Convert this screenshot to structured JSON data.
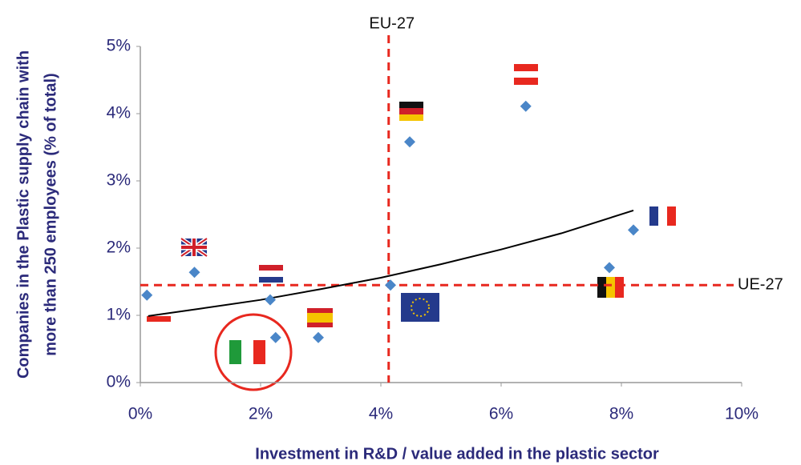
{
  "chart_data": {
    "type": "scatter",
    "x_label": "Investment in R&D / value added in the plastic sector",
    "y_label": [
      "Companies in the Plastic supply chain with",
      "more than 250 employees (% of total)"
    ],
    "x": [
      0.11,
      0.9,
      2.16,
      2.25,
      2.96,
      4.16,
      4.48,
      6.41,
      7.8,
      8.2
    ],
    "values": [
      1.3,
      1.64,
      1.23,
      0.67,
      0.67,
      1.45,
      3.58,
      4.11,
      1.71,
      2.27
    ],
    "color": "#4a86c8",
    "trend": {
      "x": [
        0.13,
        1,
        2,
        3,
        4,
        5,
        6,
        7,
        8.2
      ],
      "y": [
        0.99,
        1.1,
        1.23,
        1.39,
        1.56,
        1.76,
        1.98,
        2.22,
        2.56
      ],
      "color": "#000000"
    },
    "reference_lines": [
      {
        "axis": "x",
        "value": 4.13,
        "label": "EU-27",
        "color": "#e8281f"
      },
      {
        "axis": "y",
        "value": 1.45,
        "label": "UE-27",
        "color": "#e8281f"
      }
    ],
    "xlim": [
      0,
      10
    ],
    "xticks": [
      {
        "value": 0,
        "label": "0%"
      },
      {
        "value": 2,
        "label": "2%"
      },
      {
        "value": 4,
        "label": "4%"
      },
      {
        "value": 6,
        "label": "6%"
      },
      {
        "value": 8,
        "label": "8%"
      },
      {
        "value": 10,
        "label": "10%"
      }
    ],
    "ylim": [
      0,
      5
    ],
    "yticks": [
      {
        "value": 0,
        "label": "0%"
      },
      {
        "value": 1,
        "label": "1%"
      },
      {
        "value": 2,
        "label": "2%"
      },
      {
        "value": 3,
        "label": "3%"
      },
      {
        "value": 4,
        "label": "4%"
      },
      {
        "value": 5,
        "label": "5%"
      }
    ],
    "grid": false
  }
}
